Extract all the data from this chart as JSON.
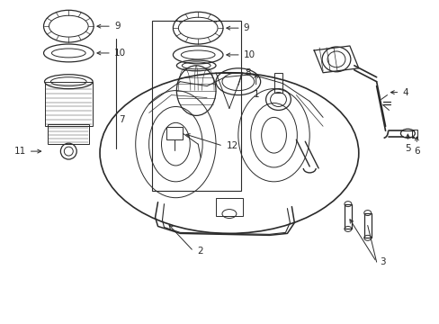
{
  "bg_color": "#ffffff",
  "line_color": "#2a2a2a",
  "figsize": [
    4.89,
    3.6
  ],
  "dpi": 100,
  "lw_main": 0.9,
  "lw_detail": 0.7,
  "fs_label": 7.5
}
